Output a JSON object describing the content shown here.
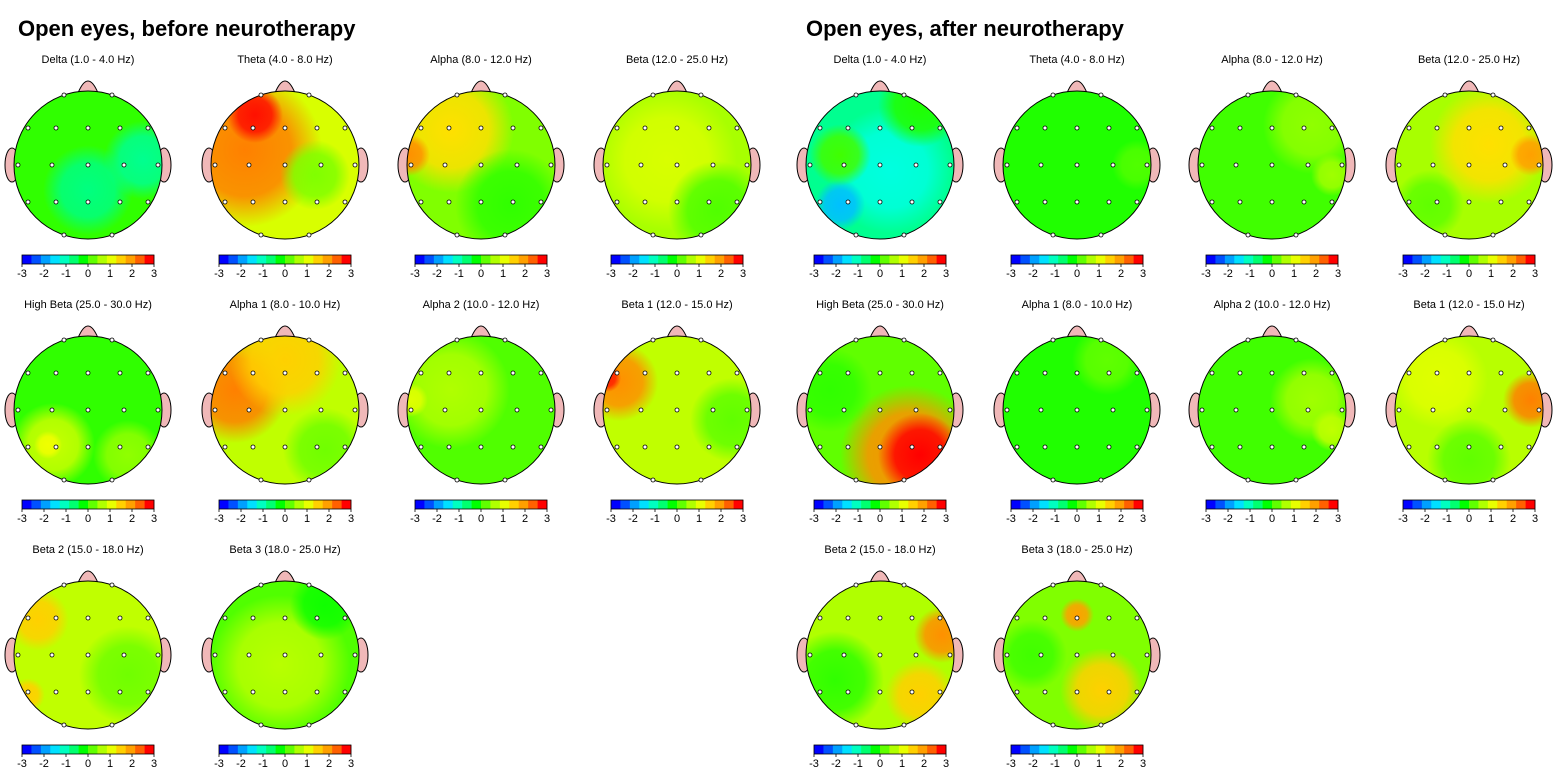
{
  "panels": [
    {
      "title": "Open eyes, before neurotherapy",
      "maps": [
        "Delta (1.0 - 4.0 Hz)",
        "Theta (4.0 - 8.0 Hz)",
        "Alpha (8.0 - 12.0 Hz)",
        "Beta (12.0 - 25.0 Hz)",
        "High Beta (25.0 - 30.0 Hz)",
        "Alpha 1 (8.0 - 10.0 Hz)",
        "Alpha 2 (10.0 - 12.0 Hz)",
        "Beta 1 (12.0 - 15.0 Hz)",
        "Beta 2 (15.0 - 18.0 Hz)",
        "Beta 3 (18.0 - 25.0 Hz)"
      ]
    },
    {
      "title": "Open eyes, after neurotherapy",
      "maps": [
        "Delta (1.0 - 4.0 Hz)",
        "Theta (4.0 - 8.0 Hz)",
        "Alpha (8.0 - 12.0 Hz)",
        "Beta (12.0 - 25.0 Hz)",
        "High Beta (25.0 - 30.0 Hz)",
        "Alpha 1 (8.0 - 10.0 Hz)",
        "Alpha 2 (10.0 - 12.0 Hz)",
        "Beta 1 (12.0 - 15.0 Hz)",
        "Beta 2 (15.0 - 18.0 Hz)",
        "Beta 3 (18.0 - 25.0 Hz)"
      ]
    }
  ],
  "colorbar_ticks": [
    -3,
    -2,
    -1,
    0,
    1,
    2,
    3
  ]
}
